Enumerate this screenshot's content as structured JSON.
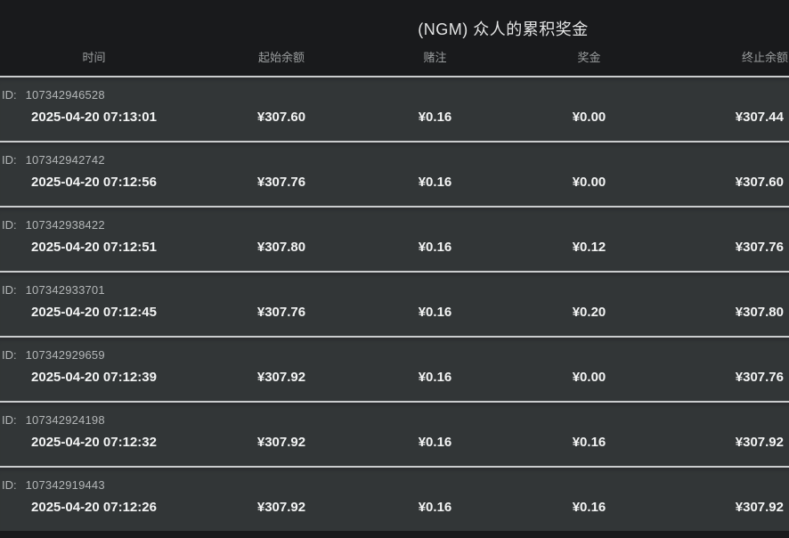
{
  "title": "(NGM) 众人的累积奖金",
  "table": {
    "id_label": "ID:",
    "columns": [
      "时间",
      "起始余额",
      "赌注",
      "奖金",
      "终止余额"
    ],
    "rows": [
      {
        "id": "107342946528",
        "time": "2025-04-20 07:13:01",
        "start": "¥307.60",
        "bet": "¥0.16",
        "prize": "¥0.00",
        "end": "¥307.44"
      },
      {
        "id": "107342942742",
        "time": "2025-04-20 07:12:56",
        "start": "¥307.76",
        "bet": "¥0.16",
        "prize": "¥0.00",
        "end": "¥307.60"
      },
      {
        "id": "107342938422",
        "time": "2025-04-20 07:12:51",
        "start": "¥307.80",
        "bet": "¥0.16",
        "prize": "¥0.12",
        "end": "¥307.76"
      },
      {
        "id": "107342933701",
        "time": "2025-04-20 07:12:45",
        "start": "¥307.76",
        "bet": "¥0.16",
        "prize": "¥0.20",
        "end": "¥307.80"
      },
      {
        "id": "107342929659",
        "time": "2025-04-20 07:12:39",
        "start": "¥307.92",
        "bet": "¥0.16",
        "prize": "¥0.00",
        "end": "¥307.76"
      },
      {
        "id": "107342924198",
        "time": "2025-04-20 07:12:32",
        "start": "¥307.92",
        "bet": "¥0.16",
        "prize": "¥0.16",
        "end": "¥307.92"
      },
      {
        "id": "107342919443",
        "time": "2025-04-20 07:12:26",
        "start": "¥307.92",
        "bet": "¥0.16",
        "prize": "¥0.16",
        "end": "¥307.92"
      }
    ]
  },
  "colors": {
    "page_background": "#191a1c",
    "row_background": "#323637",
    "divider": "#cbcdce",
    "header_text": "#9a9d9e",
    "id_text": "#b3b6b7",
    "value_text": "#f3f4f4",
    "title_text": "#e3e4e4"
  }
}
